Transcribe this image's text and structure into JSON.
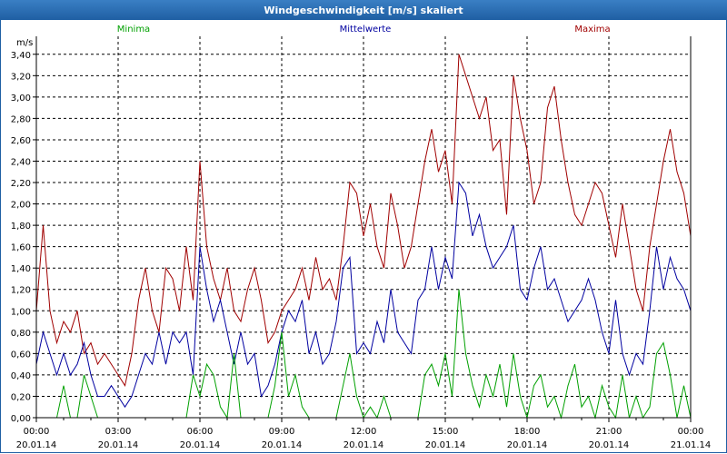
{
  "window": {
    "title": "Windgeschwindigkeit [m/s] skaliert"
  },
  "chart_data": {
    "type": "line",
    "title": "Windgeschwindigkeit [m/s] skaliert",
    "ylabel": "m/s",
    "xlabel": "",
    "ylim": [
      0,
      3.5
    ],
    "xlim": [
      0,
      24
    ],
    "grid": true,
    "y_ticks": [
      0,
      0.2,
      0.4,
      0.6,
      0.8,
      1.0,
      1.2,
      1.4,
      1.6,
      1.8,
      2.0,
      2.2,
      2.4,
      2.6,
      2.8,
      3.0,
      3.2,
      3.4
    ],
    "y_tick_labels": [
      "0,00",
      "0,20",
      "0,40",
      "0,60",
      "0,80",
      "1,00",
      "1,20",
      "1,40",
      "1,60",
      "1,80",
      "2,00",
      "2,20",
      "2,40",
      "2,60",
      "2,80",
      "3,00",
      "3,20",
      "3,40"
    ],
    "x_ticks": [
      0,
      3,
      6,
      9,
      12,
      15,
      18,
      21,
      24
    ],
    "x_tick_times": [
      "00:00",
      "03:00",
      "06:00",
      "09:00",
      "12:00",
      "15:00",
      "18:00",
      "21:00",
      "00:00"
    ],
    "x_tick_dates": [
      "20.01.14",
      "20.01.14",
      "20.01.14",
      "20.01.14",
      "20.01.14",
      "20.01.14",
      "20.01.14",
      "20.01.14",
      "21.01.14"
    ],
    "legend": [
      {
        "name": "Minima",
        "color": "#00a000"
      },
      {
        "name": "Mittelwerte",
        "color": "#0000a0"
      },
      {
        "name": "Maxima",
        "color": "#a00000"
      }
    ],
    "series": [
      {
        "name": "Maxima",
        "color": "#a00000",
        "x": [
          0,
          0.25,
          0.5,
          0.75,
          1,
          1.25,
          1.5,
          1.75,
          2,
          2.25,
          2.5,
          2.75,
          3,
          3.25,
          3.5,
          3.75,
          4,
          4.25,
          4.5,
          4.75,
          5,
          5.25,
          5.5,
          5.75,
          6,
          6.25,
          6.5,
          6.75,
          7,
          7.25,
          7.5,
          7.75,
          8,
          8.25,
          8.5,
          8.75,
          9,
          9.25,
          9.5,
          9.75,
          10,
          10.25,
          10.5,
          10.75,
          11,
          11.25,
          11.5,
          11.75,
          12,
          12.25,
          12.5,
          12.75,
          13,
          13.25,
          13.5,
          13.75,
          14,
          14.25,
          14.5,
          14.75,
          15,
          15.25,
          15.5,
          15.75,
          16,
          16.25,
          16.5,
          16.75,
          17,
          17.25,
          17.5,
          17.75,
          18,
          18.25,
          18.5,
          18.75,
          19,
          19.25,
          19.5,
          19.75,
          20,
          20.25,
          20.5,
          20.75,
          21,
          21.25,
          21.5,
          21.75,
          22,
          22.25,
          22.5,
          22.75,
          23,
          23.25,
          23.5,
          23.75,
          24
        ],
        "values": [
          1.0,
          1.8,
          1.0,
          0.7,
          0.9,
          0.8,
          1.0,
          0.6,
          0.7,
          0.5,
          0.6,
          0.5,
          0.4,
          0.3,
          0.6,
          1.1,
          1.4,
          1.0,
          0.8,
          1.4,
          1.3,
          1.0,
          1.6,
          1.1,
          2.4,
          1.6,
          1.3,
          1.1,
          1.4,
          1.0,
          0.9,
          1.2,
          1.4,
          1.1,
          0.7,
          0.8,
          1.0,
          1.1,
          1.2,
          1.4,
          1.1,
          1.5,
          1.2,
          1.3,
          1.1,
          1.6,
          2.2,
          2.1,
          1.7,
          2.0,
          1.6,
          1.4,
          2.1,
          1.8,
          1.4,
          1.6,
          2.0,
          2.4,
          2.7,
          2.3,
          2.5,
          2.0,
          3.4,
          3.2,
          3.0,
          2.8,
          3.0,
          2.5,
          2.6,
          1.9,
          3.2,
          2.8,
          2.5,
          2.0,
          2.2,
          2.9,
          3.1,
          2.6,
          2.2,
          1.9,
          1.8,
          2.0,
          2.2,
          2.1,
          1.8,
          1.5,
          2.0,
          1.6,
          1.2,
          1.0,
          1.6,
          2.0,
          2.4,
          2.7,
          2.3,
          2.1,
          1.7
        ]
      },
      {
        "name": "Mittelwerte",
        "color": "#0000a0",
        "x": [
          0,
          0.25,
          0.5,
          0.75,
          1,
          1.25,
          1.5,
          1.75,
          2,
          2.25,
          2.5,
          2.75,
          3,
          3.25,
          3.5,
          3.75,
          4,
          4.25,
          4.5,
          4.75,
          5,
          5.25,
          5.5,
          5.75,
          6,
          6.25,
          6.5,
          6.75,
          7,
          7.25,
          7.5,
          7.75,
          8,
          8.25,
          8.5,
          8.75,
          9,
          9.25,
          9.5,
          9.75,
          10,
          10.25,
          10.5,
          10.75,
          11,
          11.25,
          11.5,
          11.75,
          12,
          12.25,
          12.5,
          12.75,
          13,
          13.25,
          13.5,
          13.75,
          14,
          14.25,
          14.5,
          14.75,
          15,
          15.25,
          15.5,
          15.75,
          16,
          16.25,
          16.5,
          16.75,
          17,
          17.25,
          17.5,
          17.75,
          18,
          18.25,
          18.5,
          18.75,
          19,
          19.25,
          19.5,
          19.75,
          20,
          20.25,
          20.5,
          20.75,
          21,
          21.25,
          21.5,
          21.75,
          22,
          22.25,
          22.5,
          22.75,
          23,
          23.25,
          23.5,
          23.75,
          24
        ],
        "values": [
          0.5,
          0.8,
          0.6,
          0.4,
          0.6,
          0.4,
          0.5,
          0.7,
          0.4,
          0.2,
          0.2,
          0.3,
          0.2,
          0.1,
          0.2,
          0.4,
          0.6,
          0.5,
          0.8,
          0.5,
          0.8,
          0.7,
          0.8,
          0.4,
          1.6,
          1.2,
          0.9,
          1.1,
          0.8,
          0.5,
          0.8,
          0.5,
          0.6,
          0.2,
          0.3,
          0.5,
          0.8,
          1.0,
          0.9,
          1.1,
          0.6,
          0.8,
          0.5,
          0.6,
          0.9,
          1.4,
          1.5,
          0.6,
          0.7,
          0.6,
          0.9,
          0.7,
          1.2,
          0.8,
          0.7,
          0.6,
          1.1,
          1.2,
          1.6,
          1.2,
          1.5,
          1.3,
          2.2,
          2.1,
          1.7,
          1.9,
          1.6,
          1.4,
          1.5,
          1.6,
          1.8,
          1.2,
          1.1,
          1.4,
          1.6,
          1.2,
          1.3,
          1.1,
          0.9,
          1.0,
          1.1,
          1.3,
          1.1,
          0.8,
          0.6,
          1.1,
          0.6,
          0.4,
          0.6,
          0.5,
          1.0,
          1.6,
          1.2,
          1.5,
          1.3,
          1.2,
          1.0
        ]
      },
      {
        "name": "Minima",
        "color": "#00a000",
        "x": [
          0,
          0.25,
          0.5,
          0.75,
          1,
          1.25,
          1.5,
          1.75,
          2,
          2.25,
          2.5,
          2.75,
          3,
          3.25,
          3.5,
          3.75,
          4,
          4.25,
          4.5,
          4.75,
          5,
          5.25,
          5.5,
          5.75,
          6,
          6.25,
          6.5,
          6.75,
          7,
          7.25,
          7.5,
          7.75,
          8,
          8.25,
          8.5,
          8.75,
          9,
          9.25,
          9.5,
          9.75,
          10,
          10.25,
          10.5,
          10.75,
          11,
          11.25,
          11.5,
          11.75,
          12,
          12.25,
          12.5,
          12.75,
          13,
          13.25,
          13.5,
          13.75,
          14,
          14.25,
          14.5,
          14.75,
          15,
          15.25,
          15.5,
          15.75,
          16,
          16.25,
          16.5,
          16.75,
          17,
          17.25,
          17.5,
          17.75,
          18,
          18.25,
          18.5,
          18.75,
          19,
          19.25,
          19.5,
          19.75,
          20,
          20.25,
          20.5,
          20.75,
          21,
          21.25,
          21.5,
          21.75,
          22,
          22.25,
          22.5,
          22.75,
          23,
          23.25,
          23.5,
          23.75,
          24
        ],
        "values": [
          0,
          0,
          0,
          0,
          0.3,
          0,
          0,
          0.4,
          0.2,
          0,
          0,
          0,
          0,
          0,
          0,
          0,
          0,
          0,
          0,
          0,
          0,
          0,
          0,
          0.4,
          0.2,
          0.5,
          0.4,
          0.1,
          0,
          0.6,
          0,
          0,
          0,
          0,
          0,
          0.3,
          0.8,
          0.2,
          0.4,
          0.1,
          0,
          0,
          0,
          0,
          0,
          0.3,
          0.6,
          0.2,
          0,
          0.1,
          0,
          0.2,
          0,
          0,
          0,
          0,
          0,
          0.4,
          0.5,
          0.3,
          0.6,
          0.2,
          1.2,
          0.6,
          0.3,
          0.1,
          0.4,
          0.2,
          0.5,
          0.1,
          0.6,
          0.2,
          0,
          0.3,
          0.4,
          0.1,
          0.2,
          0,
          0.3,
          0.5,
          0.1,
          0.2,
          0,
          0.3,
          0.1,
          0,
          0.4,
          0,
          0.2,
          0,
          0.1,
          0.6,
          0.7,
          0.4,
          0,
          0.3,
          0
        ]
      }
    ]
  }
}
